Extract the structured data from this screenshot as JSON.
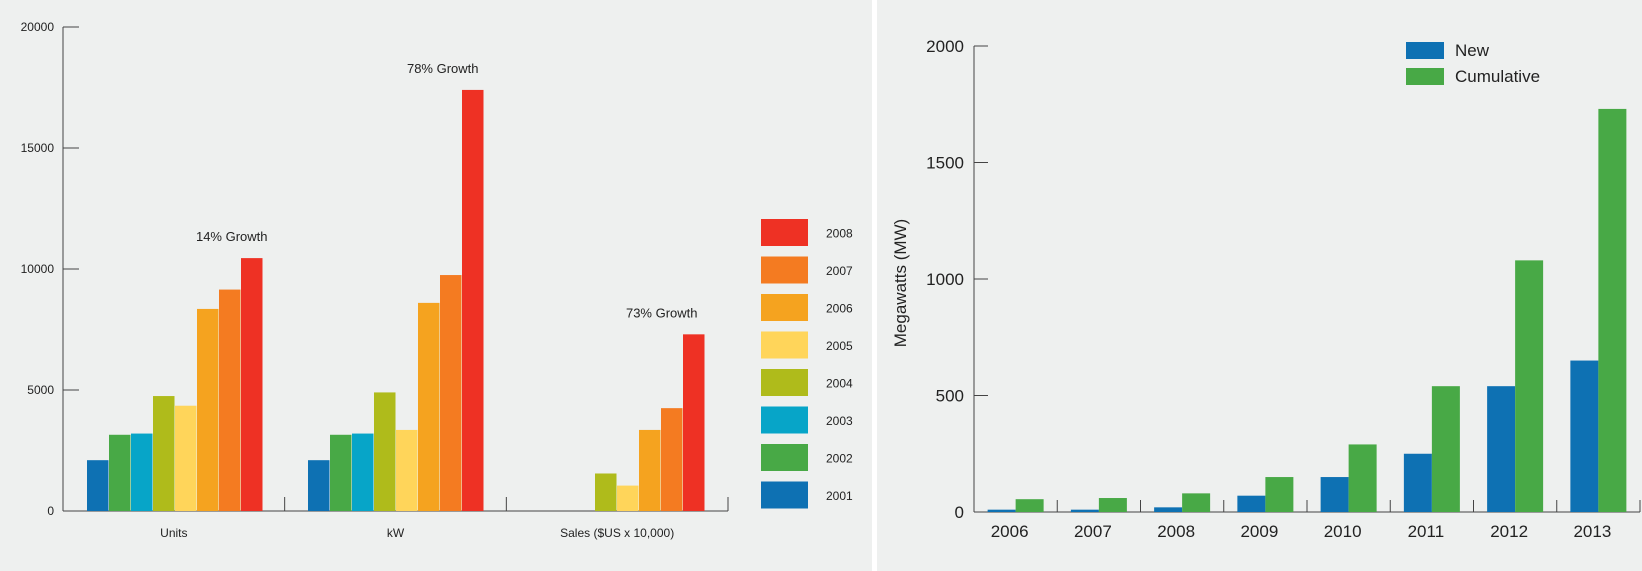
{
  "chart_data": [
    {
      "type": "bar",
      "title": "",
      "xlabel": "",
      "ylabel": "",
      "ylim": [
        0,
        20000
      ],
      "yticks": [
        0,
        5000,
        10000,
        15000,
        20000
      ],
      "categories": [
        "Units",
        "kW",
        "Sales ($US x 10,000)"
      ],
      "series": [
        {
          "name": "2001",
          "color": "#0e71b3",
          "values": [
            2100,
            2100,
            null
          ]
        },
        {
          "name": "2002",
          "color": "#48a946",
          "values": [
            3150,
            3150,
            null
          ]
        },
        {
          "name": "2003",
          "color": "#07a5c8",
          "values": [
            3200,
            3200,
            null
          ]
        },
        {
          "name": "2004",
          "color": "#afbb1b",
          "values": [
            4750,
            4900,
            1550
          ]
        },
        {
          "name": "2005",
          "color": "#ffd55a",
          "values": [
            4350,
            3350,
            1050
          ]
        },
        {
          "name": "2006",
          "color": "#f5a31f",
          "values": [
            8350,
            8600,
            3350
          ]
        },
        {
          "name": "2007",
          "color": "#f47b21",
          "values": [
            9150,
            9750,
            4250
          ]
        },
        {
          "name": "2008",
          "color": "#ee3124",
          "values": [
            10450,
            17400,
            7300
          ]
        }
      ],
      "annotations": [
        "14% Growth",
        "78% Growth",
        "73% Growth"
      ],
      "legend_position": "right",
      "legend_order": [
        "2008",
        "2007",
        "2006",
        "2005",
        "2004",
        "2003",
        "2002",
        "2001"
      ],
      "grid": false
    },
    {
      "type": "bar",
      "title": "",
      "xlabel": "",
      "ylabel": "Megawatts (MW)",
      "ylim": [
        0,
        2000
      ],
      "yticks": [
        0,
        500,
        1000,
        1500,
        2000
      ],
      "categories": [
        "2006",
        "2007",
        "2008",
        "2009",
        "2010",
        "2011",
        "2012",
        "2013"
      ],
      "series": [
        {
          "name": "New",
          "color": "#0e71b3",
          "values": [
            10,
            10,
            20,
            70,
            150,
            250,
            540,
            650
          ]
        },
        {
          "name": "Cumulative",
          "color": "#48a946",
          "values": [
            55,
            60,
            80,
            150,
            290,
            540,
            1080,
            1730
          ]
        }
      ],
      "legend_position": "top-right",
      "grid": false
    }
  ]
}
